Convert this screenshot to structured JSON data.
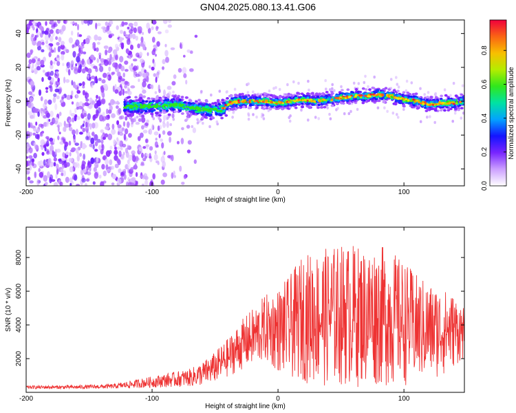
{
  "title": "GN04.2025.080.13.41.G06",
  "chart_data": [
    {
      "type": "heatmap",
      "xlabel": "Height of straight line (km)",
      "ylabel": "Frequency (Hz)",
      "xlim": [
        -200,
        148
      ],
      "ylim": [
        -50,
        48
      ],
      "xticks": [
        -200,
        -100,
        0,
        100
      ],
      "yticks": [
        -40,
        -20,
        0,
        20,
        40
      ],
      "colorbar": {
        "label": "Normalized spectral amplitude",
        "range": [
          0,
          0.98
        ],
        "ticks": [
          "0.0",
          "0.2",
          "0.4",
          "0.6",
          "0.8"
        ],
        "tick_values": [
          0,
          0.2,
          0.4,
          0.6,
          0.8
        ]
      },
      "noise_region_x": [
        -200,
        -120
      ],
      "ridge": {
        "x": [
          -120,
          -100,
          -80,
          -60,
          -45,
          -38,
          -30,
          -20,
          -10,
          0,
          10,
          20,
          30,
          40,
          50,
          60,
          70,
          80,
          90,
          100,
          110,
          120,
          130,
          140,
          148
        ],
        "freq": [
          -3,
          -3,
          -2,
          -5,
          -5,
          -1,
          0,
          0,
          0,
          -1,
          0,
          1,
          0,
          1,
          2,
          3,
          3,
          4,
          3,
          1,
          0,
          -2,
          -1,
          -1,
          0
        ]
      }
    },
    {
      "type": "line",
      "xlabel": "Height of straight line (km)",
      "ylabel": "SNR (10 * v/v)",
      "xlim": [
        -200,
        148
      ],
      "ylim": [
        0,
        9800
      ],
      "xticks": [
        -200,
        -100,
        0,
        100
      ],
      "yticks": [
        2000,
        4000,
        6000,
        8000
      ],
      "color": "#ee3333",
      "envelope": {
        "x": [
          -200,
          -160,
          -130,
          -110,
          -90,
          -70,
          -60,
          -50,
          -40,
          -30,
          -20,
          -10,
          0,
          10,
          20,
          30,
          40,
          50,
          60,
          70,
          80,
          90,
          100,
          110,
          120,
          130,
          140,
          148
        ],
        "low": [
          200,
          200,
          220,
          260,
          300,
          350,
          400,
          600,
          900,
          1300,
          1600,
          1800,
          1200,
          800,
          600,
          400,
          300,
          300,
          300,
          300,
          300,
          300,
          400,
          500,
          700,
          900,
          1500,
          2000
        ],
        "high": [
          400,
          420,
          500,
          800,
          1100,
          1400,
          1800,
          2400,
          3200,
          4200,
          5000,
          5800,
          6200,
          7000,
          8200,
          8400,
          8600,
          8800,
          8800,
          8600,
          8800,
          8400,
          7800,
          7000,
          6500,
          6200,
          5800,
          5000
        ]
      }
    }
  ]
}
